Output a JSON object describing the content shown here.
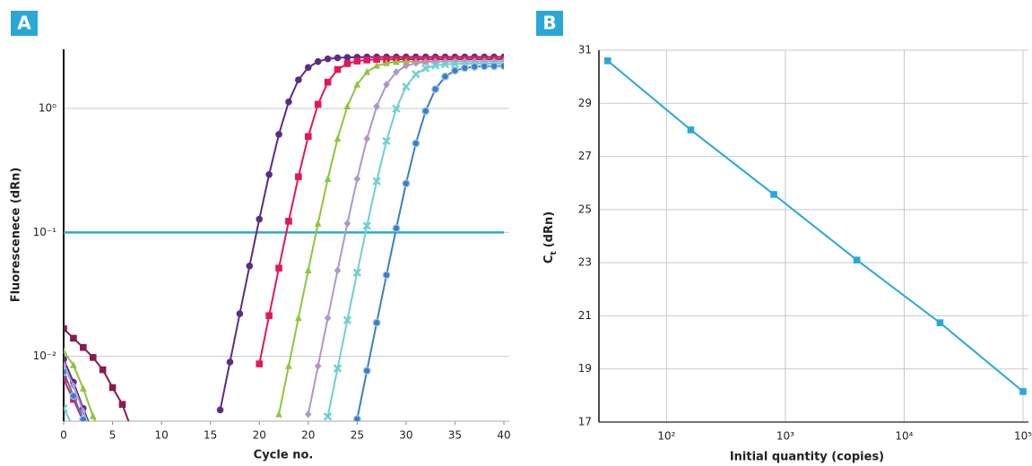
{
  "chart_data": [
    {
      "type": "line",
      "panel_label": "A",
      "x_label": "Cycle no.",
      "y_label": "Fluorescenece (dRn)",
      "ylog": true,
      "xlog": false,
      "grid": "y",
      "xlim": [
        0,
        45
      ],
      "ylim": [
        0.003,
        3
      ],
      "xticks": [
        0,
        5,
        10,
        15,
        20,
        {
          "value": 25,
          "label": "20"
        },
        {
          "value": 30,
          "label": "25"
        },
        {
          "value": 35,
          "label": "30"
        },
        {
          "value": 40,
          "label": "35"
        },
        {
          "value": 45,
          "label": "40"
        }
      ],
      "yticks": [
        {
          "value": 0.01,
          "label": "10⁻²"
        },
        {
          "value": 0.1,
          "label": "10⁻¹"
        },
        {
          "value": 1,
          "label": "10⁰"
        }
      ],
      "threshold": 0.1,
      "threshold_color": "#2aa7d6",
      "x": [
        0,
        1,
        2,
        3,
        4,
        5,
        6,
        7,
        8,
        9,
        10,
        11,
        12,
        13,
        14,
        15,
        16,
        17,
        18,
        19,
        20,
        21,
        22,
        23,
        24,
        25,
        26,
        27,
        28,
        29,
        30,
        31,
        32,
        33,
        34,
        35,
        36,
        37,
        38,
        39,
        40,
        41,
        42,
        43,
        44,
        45
      ],
      "series": [
        {
          "color": "#8b1a4f",
          "marker": "square",
          "values": [
            0.0167,
            0.014,
            0.0118,
            0.0098,
            0.0078,
            0.0056,
            0.0041,
            0.0025,
            null,
            null,
            null,
            null,
            null,
            null,
            null,
            null,
            null,
            null,
            null,
            null,
            null,
            null,
            null,
            null,
            null,
            null,
            null,
            null,
            null,
            null,
            null,
            null,
            null,
            null,
            null,
            null,
            null,
            null,
            null,
            null,
            null,
            null,
            null,
            null,
            null,
            null
          ]
        },
        {
          "color": "#5b2c86",
          "marker": "circle",
          "values": [
            0.0095,
            0.0062,
            0.0038,
            0.0024,
            null,
            null,
            null,
            null,
            null,
            null,
            null,
            null,
            null,
            null,
            null,
            null,
            0.0037,
            0.009,
            0.0221,
            0.0536,
            0.128,
            0.293,
            0.618,
            1.13,
            1.7,
            2.14,
            2.39,
            2.51,
            2.56,
            2.58,
            2.59,
            2.6,
            2.6,
            2.6,
            2.6,
            2.6,
            2.6,
            2.6,
            2.6,
            2.6,
            2.6,
            2.6,
            2.6,
            2.6,
            2.6,
            2.6
          ]
        },
        {
          "color": "#e3175b",
          "marker": "square",
          "values": [
            0.0065,
            0.0045,
            0.003,
            0.0021,
            null,
            null,
            null,
            null,
            null,
            null,
            null,
            null,
            null,
            null,
            null,
            null,
            null,
            null,
            null,
            null,
            0.0087,
            0.0213,
            0.0515,
            0.123,
            0.281,
            0.594,
            1.08,
            1.63,
            2.06,
            2.3,
            2.41,
            2.46,
            2.49,
            2.49,
            2.5,
            2.5,
            2.5,
            2.5,
            2.5,
            2.5,
            2.5,
            2.5,
            2.5,
            2.5,
            2.5,
            2.5
          ]
        },
        {
          "color": "#8cc63f",
          "marker": "triangle",
          "values": [
            0.011,
            0.0085,
            0.0055,
            0.0033,
            0.0021,
            null,
            null,
            null,
            null,
            null,
            null,
            null,
            null,
            null,
            null,
            null,
            null,
            null,
            null,
            null,
            null,
            null,
            0.00341,
            0.00835,
            0.0204,
            0.0494,
            0.118,
            0.27,
            0.57,
            1.04,
            1.56,
            1.97,
            2.21,
            2.32,
            2.37,
            2.39,
            2.39,
            2.4,
            2.4,
            2.4,
            2.4,
            2.4,
            2.4,
            2.4,
            2.4,
            2.4
          ]
        },
        {
          "color": "#b295cb",
          "marker": "diamond",
          "values": [
            0.0085,
            0.0058,
            0.0036,
            0.0023,
            null,
            null,
            null,
            null,
            null,
            null,
            null,
            null,
            null,
            null,
            null,
            null,
            null,
            null,
            null,
            null,
            null,
            null,
            null,
            null,
            null,
            0.00341,
            0.00835,
            0.0204,
            0.0494,
            0.118,
            0.27,
            0.57,
            1.04,
            1.56,
            1.97,
            2.21,
            2.32,
            2.37,
            2.39,
            2.39,
            2.4,
            2.4,
            2.4,
            2.4,
            2.4,
            2.4
          ]
        },
        {
          "color": "#6fcfd2",
          "marker": "x",
          "values": [
            0.0038,
            0.0027,
            null,
            null,
            null,
            null,
            null,
            null,
            null,
            null,
            null,
            null,
            null,
            null,
            null,
            null,
            null,
            null,
            null,
            null,
            null,
            null,
            null,
            null,
            null,
            null,
            null,
            0.00327,
            0.008,
            0.0196,
            0.0474,
            0.113,
            0.259,
            0.546,
            0.996,
            1.5,
            1.89,
            2.11,
            2.22,
            2.27,
            2.29,
            2.29,
            2.3,
            2.3,
            2.3,
            2.3
          ]
        },
        {
          "color": "#3c7ec2",
          "marker": "circle-outline",
          "values": [
            0.0075,
            0.0048,
            0.0031,
            0.002,
            null,
            null,
            null,
            null,
            null,
            null,
            null,
            null,
            null,
            null,
            null,
            null,
            null,
            null,
            null,
            null,
            null,
            null,
            null,
            null,
            null,
            null,
            null,
            null,
            null,
            null,
            0.00312,
            0.00766,
            0.0187,
            0.0453,
            0.108,
            0.248,
            0.523,
            0.953,
            1.43,
            1.81,
            2.02,
            2.12,
            2.17,
            2.19,
            2.19,
            2.2
          ]
        }
      ]
    },
    {
      "type": "line",
      "panel_label": "B",
      "x_label": "Initial quantity (copies)",
      "y_label": "C",
      "y_label_subscript": "t",
      "y_label_unit": "(dRn)",
      "xlog": true,
      "ylog": false,
      "grid": "both",
      "xlim": [
        27,
        100000
      ],
      "ylim": [
        17,
        31
      ],
      "xticks": [
        {
          "value": 100,
          "label": "10²"
        },
        {
          "value": 1000,
          "label": "10³"
        },
        {
          "value": 10000,
          "label": "10⁴"
        },
        {
          "value": 100000,
          "label": "10⁵"
        }
      ],
      "yticks": [
        17,
        19,
        21,
        23,
        25,
        27,
        29,
        31
      ],
      "x": [
        32,
        160,
        800,
        4000,
        20000,
        100000
      ],
      "series": [
        {
          "color": "#29a8d8",
          "marker": "square",
          "values": [
            30.6,
            28.0,
            25.57,
            23.1,
            20.74,
            18.15
          ]
        }
      ]
    }
  ]
}
